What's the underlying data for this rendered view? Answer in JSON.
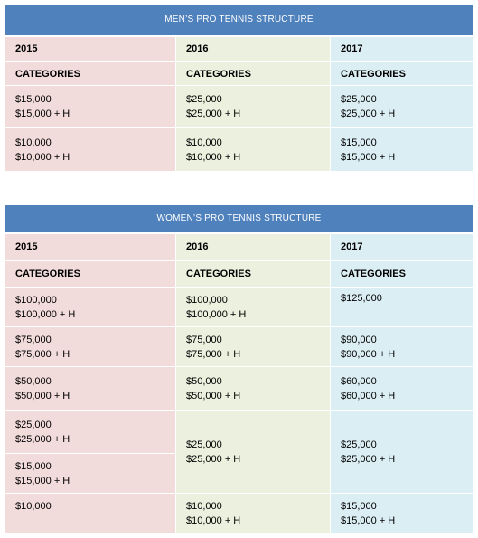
{
  "men": {
    "title": "MEN’S PRO TENNIS STRUCTURE",
    "years": [
      "2015",
      "2016",
      "2017"
    ],
    "cat_label": "CATEGORIES",
    "rows": [
      [
        [
          "$15,000",
          "$15,000 + H"
        ],
        [
          "$25,000",
          "$25,000 + H"
        ],
        [
          "$25,000",
          "$25,000 + H"
        ]
      ],
      [
        [
          "$10,000",
          "$10,000 + H"
        ],
        [
          "$10,000",
          "$10,000 + H"
        ],
        [
          "$15,000",
          "$15,000 + H"
        ]
      ]
    ]
  },
  "women": {
    "title": "WOMEN’S PRO TENNIS STRUCTURE",
    "years": [
      "2015",
      "2016",
      "2017"
    ],
    "cat_label": "CATEGORIES",
    "rows": [
      [
        [
          "$100,000",
          "$100,000 + H"
        ],
        [
          "$100,000",
          "$100,000 + H"
        ],
        [
          "$125,000"
        ]
      ],
      [
        [
          "$75,000",
          "$75,000 + H"
        ],
        [
          "$75,000",
          "$75,000 + H"
        ],
        [
          "$90,000",
          "$90,000 + H"
        ]
      ],
      [
        [
          "$50,000",
          "$50,000 + H"
        ],
        [
          "$50,000",
          "$50,000 + H"
        ],
        [
          "$60,000",
          "$60,000 + H"
        ]
      ],
      [
        [
          "$25,000",
          "$25,000 + H"
        ],
        [
          "$25,000",
          "$25,000 + H"
        ],
        [
          "$25,000",
          "$25,000 + H"
        ]
      ],
      [
        [
          "$15,000",
          "$15,000 + H"
        ]
      ],
      [
        [
          "$10,000"
        ],
        [
          "$10,000",
          "$10,000 + H"
        ],
        [
          "$15,000",
          "$15,000 + H"
        ]
      ]
    ]
  }
}
